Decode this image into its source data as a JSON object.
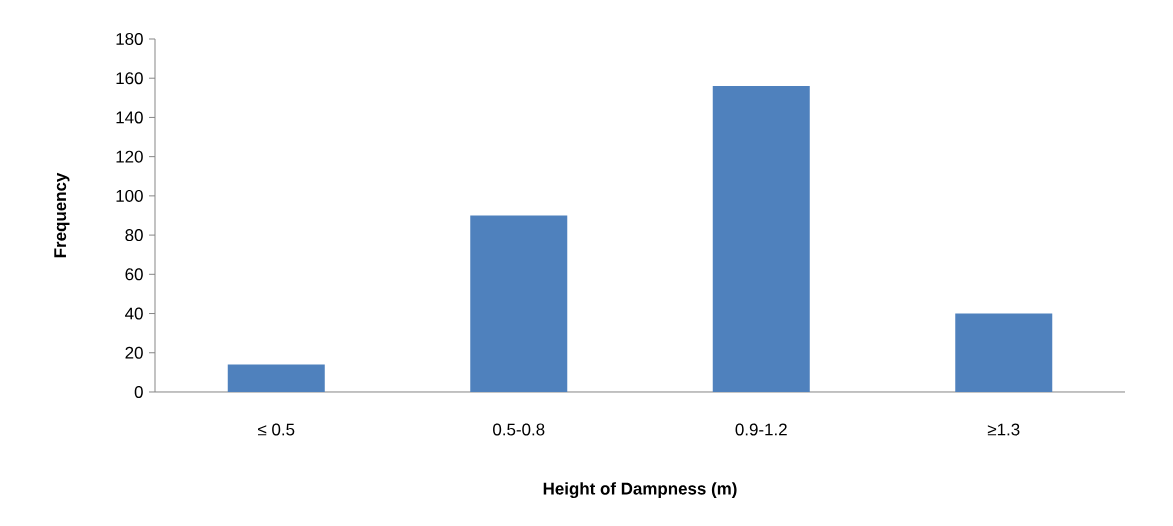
{
  "chart_data": {
    "type": "bar",
    "xlabel": "Height of Dampness (m)",
    "ylabel": "Frequency",
    "categories": [
      "≤ 0.5",
      "0.5-0.8",
      "0.9-1.2",
      "≥1.3"
    ],
    "values": [
      14,
      90,
      156,
      40
    ],
    "color": "#4f81bd",
    "ylim": [
      0,
      180
    ],
    "yticks": [
      0,
      20,
      40,
      60,
      80,
      100,
      120,
      140,
      160,
      180
    ]
  }
}
